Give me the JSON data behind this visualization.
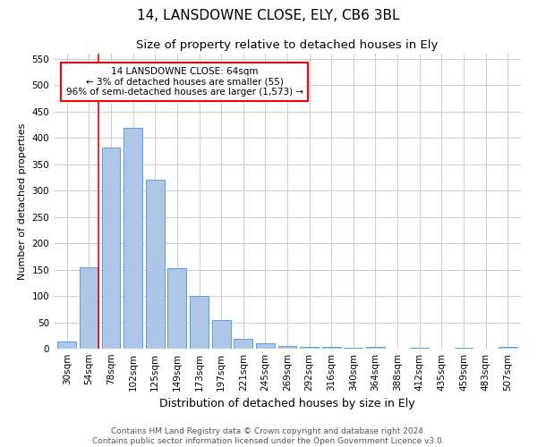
{
  "title1": "14, LANSDOWNE CLOSE, ELY, CB6 3BL",
  "title2": "Size of property relative to detached houses in Ely",
  "xlabel": "Distribution of detached houses by size in Ely",
  "ylabel": "Number of detached properties",
  "footer": "Contains HM Land Registry data © Crown copyright and database right 2024.\nContains public sector information licensed under the Open Government Licence v3.0.",
  "categories": [
    "30sqm",
    "54sqm",
    "78sqm",
    "102sqm",
    "125sqm",
    "149sqm",
    "173sqm",
    "197sqm",
    "221sqm",
    "245sqm",
    "269sqm",
    "292sqm",
    "316sqm",
    "340sqm",
    "364sqm",
    "388sqm",
    "412sqm",
    "435sqm",
    "459sqm",
    "483sqm",
    "507sqm"
  ],
  "values": [
    13,
    155,
    382,
    419,
    320,
    152,
    100,
    55,
    19,
    10,
    5,
    3,
    4,
    1,
    3,
    0,
    1,
    0,
    1,
    0,
    4
  ],
  "bar_color": "#aec6e8",
  "bar_edge_color": "#5a9fd4",
  "annotation_text": "14 LANSDOWNE CLOSE: 64sqm\n← 3% of detached houses are smaller (55)\n96% of semi-detached houses are larger (1,573) →",
  "annotation_box_color": "white",
  "annotation_box_edge_color": "red",
  "vline_color": "red",
  "ylim": [
    0,
    560
  ],
  "yticks": [
    0,
    50,
    100,
    150,
    200,
    250,
    300,
    350,
    400,
    450,
    500,
    550
  ],
  "grid_color": "#cccccc",
  "background_color": "white",
  "title1_fontsize": 11,
  "title2_fontsize": 9.5,
  "xlabel_fontsize": 9,
  "ylabel_fontsize": 8,
  "tick_fontsize": 7.5,
  "annotation_fontsize": 7.5,
  "footer_fontsize": 6.5
}
